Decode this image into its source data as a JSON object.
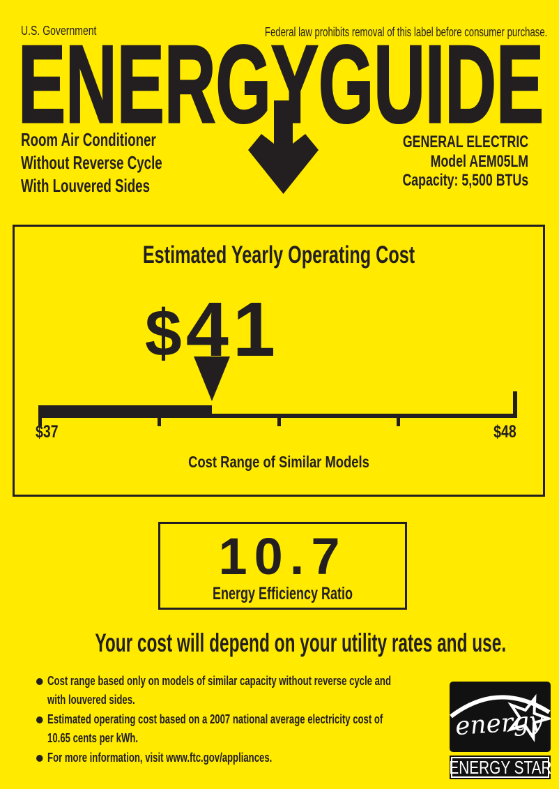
{
  "colors": {
    "background": "#ffea00",
    "ink": "#231f20",
    "white": "#ffffff"
  },
  "header": {
    "left": "U.S. Government",
    "right": "Federal law prohibits removal of this label before consumer purchase."
  },
  "logo": {
    "title": "ENERGYGUIDE",
    "arrow_icon": "down-arrow"
  },
  "product": {
    "left_lines": "Room Air Conditioner\nWithout Reverse Cycle\nWith Louvered Sides",
    "right_lines": "GENERAL ELECTRIC\nModel AEM05LM\nCapacity: 5,500 BTUs"
  },
  "cost_box": {
    "title": "Estimated Yearly Operating Cost",
    "currency": "$",
    "amount": "41",
    "scale": {
      "min": 37,
      "max": 48,
      "value": 41
    },
    "min_label": "$37",
    "max_label": "$48",
    "caption": "Cost Range of Similar Models"
  },
  "eer_box": {
    "value": "10.7",
    "label": "Energy Efficiency Ratio"
  },
  "footer": {
    "heading": "Your cost will depend on your utility rates and use.",
    "bullets": [
      "Cost range based only on models of similar capacity without reverse cycle and\nwith louvered sides.",
      "Estimated operating cost based on a 2007 national average electricity cost of\n10.65 cents per kWh.",
      "For more information, visit www.ftc.gov/appliances."
    ]
  },
  "energy_star": {
    "script": "energy",
    "bar_label": "ENERGY STAR"
  }
}
